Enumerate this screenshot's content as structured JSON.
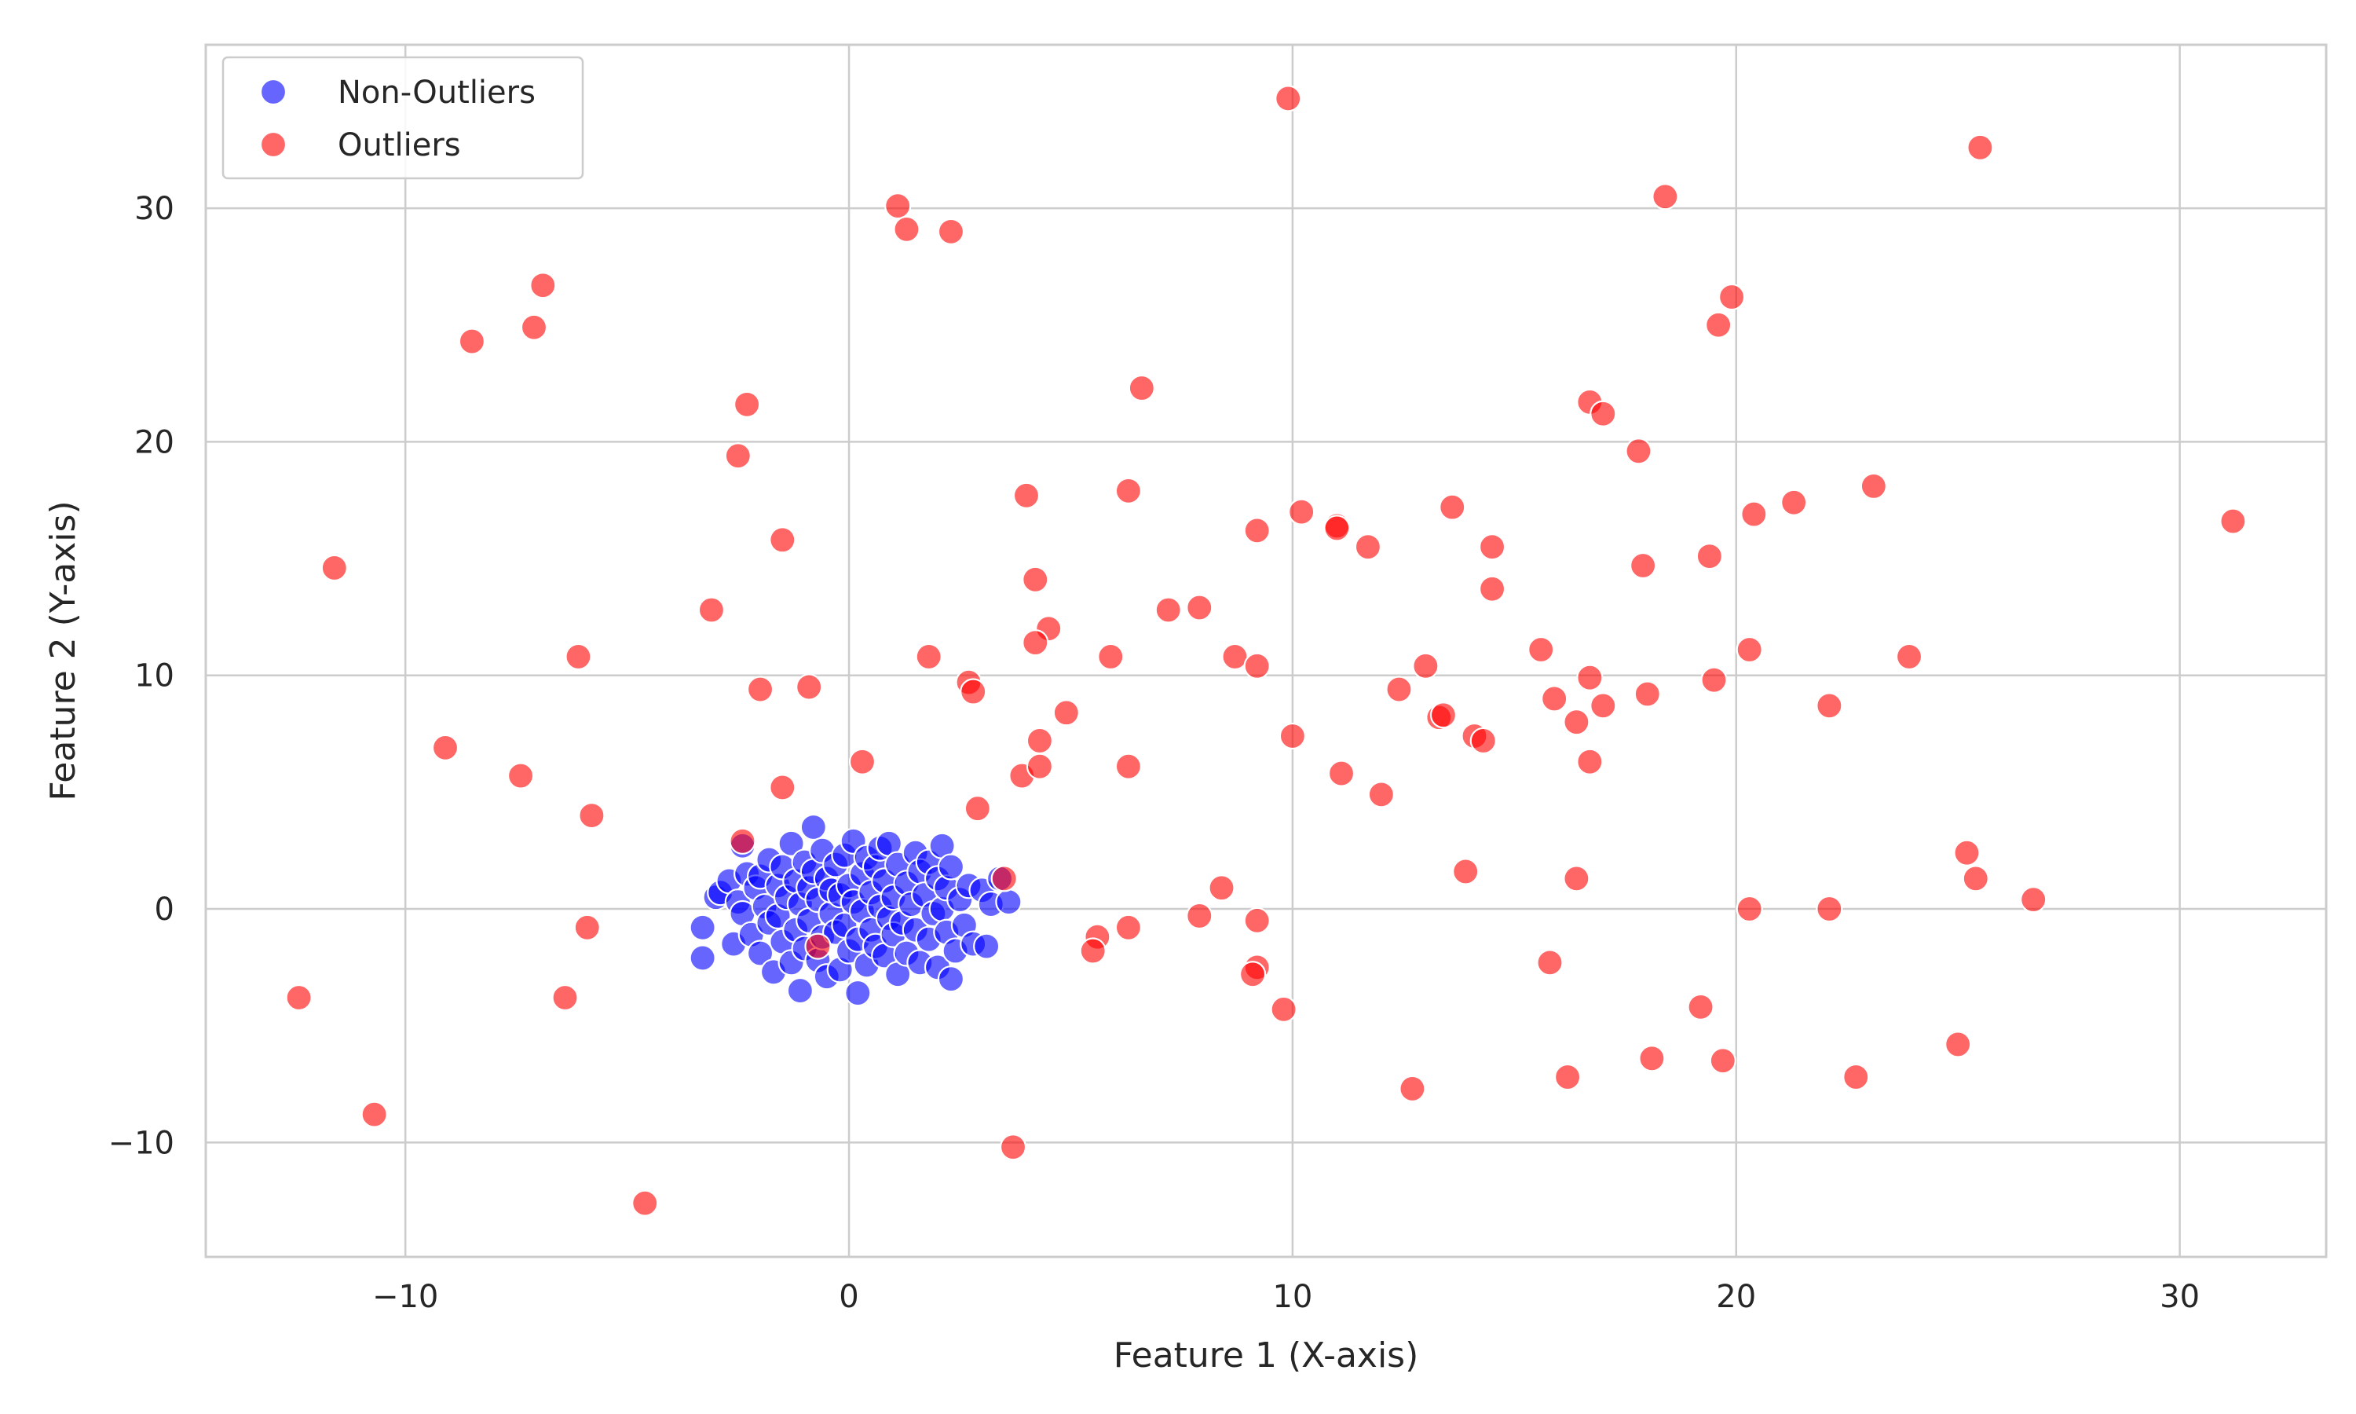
{
  "chart_data": {
    "type": "scatter",
    "title": "",
    "xlabel": "Feature 1 (X-axis)",
    "ylabel": "Feature 2 (Y-axis)",
    "xlim": [
      -14.5,
      33.3
    ],
    "ylim": [
      -14.9,
      37.0
    ],
    "xticks": [
      -10,
      0,
      10,
      20,
      30
    ],
    "yticks": [
      -10,
      0,
      10,
      20,
      30
    ],
    "xtick_labels": [
      "−10",
      "0",
      "10",
      "20",
      "30"
    ],
    "ytick_labels": [
      "−10",
      "0",
      "10",
      "20",
      "30"
    ],
    "grid": true,
    "legend_position": "top-left",
    "series": [
      {
        "name": "Non-Outliers",
        "color": "#0000ff",
        "points": [
          [
            -3.3,
            -0.8
          ],
          [
            -3.3,
            -2.1
          ],
          [
            -3.0,
            0.5
          ],
          [
            -2.9,
            0.7
          ],
          [
            -2.7,
            1.2
          ],
          [
            -2.6,
            -1.5
          ],
          [
            -2.5,
            0.3
          ],
          [
            -2.4,
            2.7
          ],
          [
            -2.4,
            -0.2
          ],
          [
            -2.3,
            1.5
          ],
          [
            -2.2,
            -1.1
          ],
          [
            -2.1,
            0.9
          ],
          [
            -2.0,
            -1.9
          ],
          [
            -2.0,
            1.4
          ],
          [
            -1.9,
            0.1
          ],
          [
            -1.8,
            -0.6
          ],
          [
            -1.8,
            2.1
          ],
          [
            -1.7,
            -2.7
          ],
          [
            -1.6,
            1.0
          ],
          [
            -1.6,
            -0.3
          ],
          [
            -1.5,
            1.8
          ],
          [
            -1.5,
            -1.4
          ],
          [
            -1.4,
            0.5
          ],
          [
            -1.3,
            2.8
          ],
          [
            -1.3,
            -2.3
          ],
          [
            -1.2,
            -0.9
          ],
          [
            -1.2,
            1.2
          ],
          [
            -1.1,
            -3.5
          ],
          [
            -1.1,
            0.2
          ],
          [
            -1.0,
            2.0
          ],
          [
            -1.0,
            -1.7
          ],
          [
            -0.9,
            0.9
          ],
          [
            -0.9,
            -0.5
          ],
          [
            -0.8,
            3.5
          ],
          [
            -0.8,
            1.6
          ],
          [
            -0.7,
            -2.2
          ],
          [
            -0.7,
            0.4
          ],
          [
            -0.6,
            -1.2
          ],
          [
            -0.6,
            2.5
          ],
          [
            -0.5,
            1.3
          ],
          [
            -0.5,
            -2.9
          ],
          [
            -0.4,
            -0.2
          ],
          [
            -0.4,
            0.8
          ],
          [
            -0.3,
            1.9
          ],
          [
            -0.3,
            -1.0
          ],
          [
            -0.2,
            -2.6
          ],
          [
            -0.2,
            0.6
          ],
          [
            -0.1,
            2.3
          ],
          [
            -0.1,
            -0.7
          ],
          [
            0.0,
            1.0
          ],
          [
            0.0,
            -1.8
          ],
          [
            0.1,
            0.3
          ],
          [
            0.1,
            2.9
          ],
          [
            0.2,
            -3.6
          ],
          [
            0.2,
            -1.3
          ],
          [
            0.3,
            1.5
          ],
          [
            0.3,
            -0.1
          ],
          [
            0.4,
            2.2
          ],
          [
            0.4,
            -2.4
          ],
          [
            0.5,
            0.7
          ],
          [
            0.5,
            -0.9
          ],
          [
            0.6,
            1.8
          ],
          [
            0.6,
            -1.6
          ],
          [
            0.7,
            2.6
          ],
          [
            0.7,
            0.1
          ],
          [
            0.8,
            -2.0
          ],
          [
            0.8,
            1.2
          ],
          [
            0.9,
            -0.4
          ],
          [
            0.9,
            2.8
          ],
          [
            1.0,
            -1.1
          ],
          [
            1.0,
            0.5
          ],
          [
            1.1,
            1.9
          ],
          [
            1.1,
            -2.8
          ],
          [
            1.2,
            -0.6
          ],
          [
            1.3,
            1.1
          ],
          [
            1.3,
            -1.9
          ],
          [
            1.4,
            0.2
          ],
          [
            1.5,
            2.4
          ],
          [
            1.5,
            -0.9
          ],
          [
            1.6,
            1.6
          ],
          [
            1.6,
            -2.3
          ],
          [
            1.7,
            0.6
          ],
          [
            1.8,
            -1.3
          ],
          [
            1.8,
            2.0
          ],
          [
            1.9,
            -0.2
          ],
          [
            2.0,
            1.3
          ],
          [
            2.0,
            -2.5
          ],
          [
            2.1,
            0.0
          ],
          [
            2.1,
            2.7
          ],
          [
            2.2,
            -1.0
          ],
          [
            2.2,
            0.9
          ],
          [
            2.3,
            -3.0
          ],
          [
            2.3,
            1.8
          ],
          [
            2.4,
            -1.8
          ],
          [
            2.5,
            0.4
          ],
          [
            2.6,
            -0.7
          ],
          [
            2.7,
            1.0
          ],
          [
            2.8,
            -1.5
          ],
          [
            3.0,
            0.8
          ],
          [
            3.1,
            -1.6
          ],
          [
            3.2,
            0.2
          ],
          [
            3.4,
            1.3
          ],
          [
            3.6,
            0.3
          ]
        ]
      },
      {
        "name": "Outliers",
        "color": "#ff0000",
        "points": [
          [
            9.9,
            34.7
          ],
          [
            25.5,
            32.6
          ],
          [
            1.1,
            30.1
          ],
          [
            1.3,
            29.1
          ],
          [
            2.3,
            29.0
          ],
          [
            18.4,
            30.5
          ],
          [
            -6.9,
            26.7
          ],
          [
            -7.1,
            24.9
          ],
          [
            -8.5,
            24.3
          ],
          [
            19.9,
            26.2
          ],
          [
            19.6,
            25.0
          ],
          [
            6.6,
            22.3
          ],
          [
            -2.3,
            21.6
          ],
          [
            16.7,
            21.7
          ],
          [
            17.0,
            21.2
          ],
          [
            -2.5,
            19.4
          ],
          [
            17.8,
            19.6
          ],
          [
            4.0,
            17.7
          ],
          [
            6.3,
            17.9
          ],
          [
            23.1,
            18.1
          ],
          [
            10.2,
            17.0
          ],
          [
            13.6,
            17.2
          ],
          [
            20.4,
            16.9
          ],
          [
            21.3,
            17.4
          ],
          [
            31.2,
            16.6
          ],
          [
            9.2,
            16.2
          ],
          [
            11.0,
            16.4
          ],
          [
            11.0,
            16.3
          ],
          [
            11.7,
            15.5
          ],
          [
            14.5,
            15.5
          ],
          [
            -1.5,
            15.8
          ],
          [
            -11.6,
            14.6
          ],
          [
            17.9,
            14.7
          ],
          [
            19.4,
            15.1
          ],
          [
            4.2,
            14.1
          ],
          [
            14.5,
            13.7
          ],
          [
            -3.1,
            12.8
          ],
          [
            7.2,
            12.8
          ],
          [
            7.9,
            12.9
          ],
          [
            4.5,
            12.0
          ],
          [
            4.2,
            11.4
          ],
          [
            15.6,
            11.1
          ],
          [
            20.3,
            11.1
          ],
          [
            -6.1,
            10.8
          ],
          [
            1.8,
            10.8
          ],
          [
            5.9,
            10.8
          ],
          [
            8.7,
            10.8
          ],
          [
            23.9,
            10.8
          ],
          [
            9.2,
            10.4
          ],
          [
            13.0,
            10.4
          ],
          [
            16.7,
            9.9
          ],
          [
            19.5,
            9.8
          ],
          [
            2.7,
            9.7
          ],
          [
            2.8,
            9.3
          ],
          [
            -2.0,
            9.4
          ],
          [
            -0.9,
            9.5
          ],
          [
            12.4,
            9.4
          ],
          [
            15.9,
            9.0
          ],
          [
            18.0,
            9.2
          ],
          [
            22.1,
            8.7
          ],
          [
            16.4,
            8.0
          ],
          [
            17.0,
            8.7
          ],
          [
            4.9,
            8.4
          ],
          [
            13.3,
            8.2
          ],
          [
            13.4,
            8.3
          ],
          [
            -9.1,
            6.9
          ],
          [
            4.3,
            7.2
          ],
          [
            10.0,
            7.4
          ],
          [
            14.1,
            7.4
          ],
          [
            14.3,
            7.2
          ],
          [
            16.7,
            6.3
          ],
          [
            6.3,
            6.1
          ],
          [
            0.3,
            6.3
          ],
          [
            3.9,
            5.7
          ],
          [
            4.3,
            6.1
          ],
          [
            11.1,
            5.8
          ],
          [
            -7.4,
            5.7
          ],
          [
            -1.5,
            5.2
          ],
          [
            12.0,
            4.9
          ],
          [
            2.9,
            4.3
          ],
          [
            -5.8,
            4.0
          ],
          [
            -2.4,
            2.9
          ],
          [
            25.2,
            2.4
          ],
          [
            3.5,
            1.3
          ],
          [
            13.9,
            1.6
          ],
          [
            16.4,
            1.3
          ],
          [
            25.4,
            1.3
          ],
          [
            8.4,
            0.9
          ],
          [
            26.7,
            0.4
          ],
          [
            20.3,
            0.0
          ],
          [
            22.1,
            0.0
          ],
          [
            7.9,
            -0.3
          ],
          [
            9.2,
            -0.5
          ],
          [
            -5.9,
            -0.8
          ],
          [
            5.6,
            -1.2
          ],
          [
            6.3,
            -0.8
          ],
          [
            5.5,
            -1.8
          ],
          [
            -0.7,
            -1.6
          ],
          [
            9.2,
            -2.5
          ],
          [
            9.1,
            -2.8
          ],
          [
            15.8,
            -2.3
          ],
          [
            -12.4,
            -3.8
          ],
          [
            -6.4,
            -3.8
          ],
          [
            9.8,
            -4.3
          ],
          [
            19.2,
            -4.2
          ],
          [
            25.0,
            -5.8
          ],
          [
            18.1,
            -6.4
          ],
          [
            19.7,
            -6.5
          ],
          [
            16.2,
            -7.2
          ],
          [
            22.7,
            -7.2
          ],
          [
            12.7,
            -7.7
          ],
          [
            -10.7,
            -8.8
          ],
          [
            3.7,
            -10.2
          ],
          [
            -4.6,
            -12.6
          ]
        ]
      }
    ]
  }
}
